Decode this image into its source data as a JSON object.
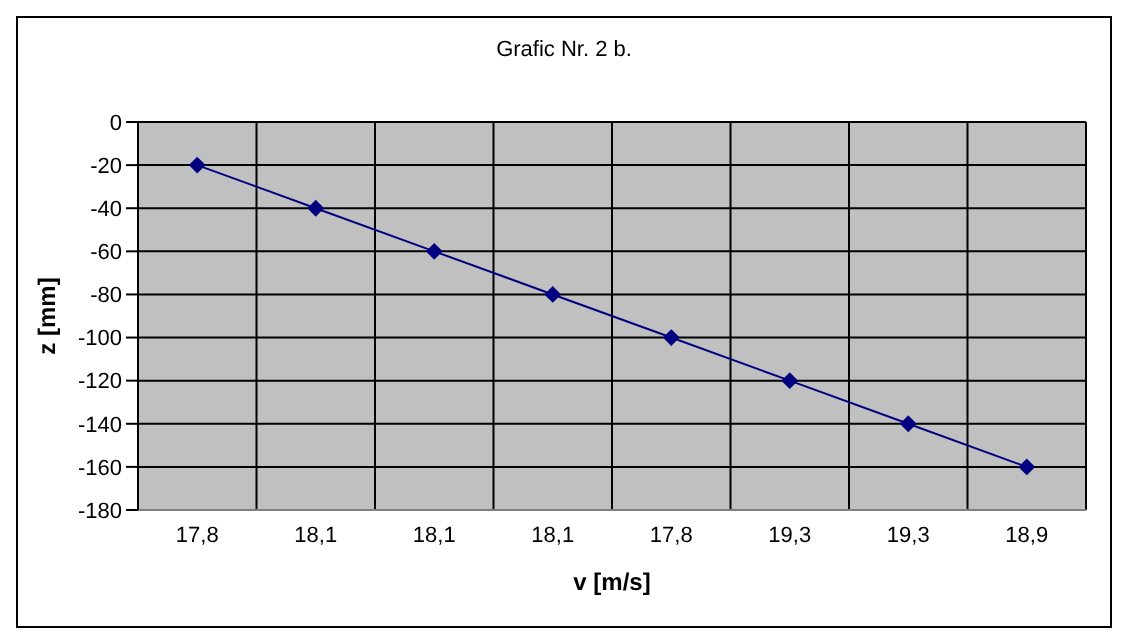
{
  "chart_data": {
    "type": "line",
    "title": "Grafic Nr. 2 b.",
    "xlabel": "v [m/s]",
    "ylabel": "z [mm]",
    "categories": [
      "17,8",
      "18,1",
      "18,1",
      "18,1",
      "17,8",
      "19,3",
      "19,3",
      "18,9"
    ],
    "series": [
      {
        "color": "#000080",
        "values": [
          -20,
          -40,
          -60,
          -80,
          -100,
          -120,
          -140,
          -160
        ]
      }
    ],
    "ylim": [
      -180,
      0
    ],
    "yticks": [
      -180,
      -160,
      -140,
      -120,
      -100,
      -80,
      -60,
      -40,
      -20,
      0
    ],
    "grid": true,
    "marker": "diamond"
  }
}
